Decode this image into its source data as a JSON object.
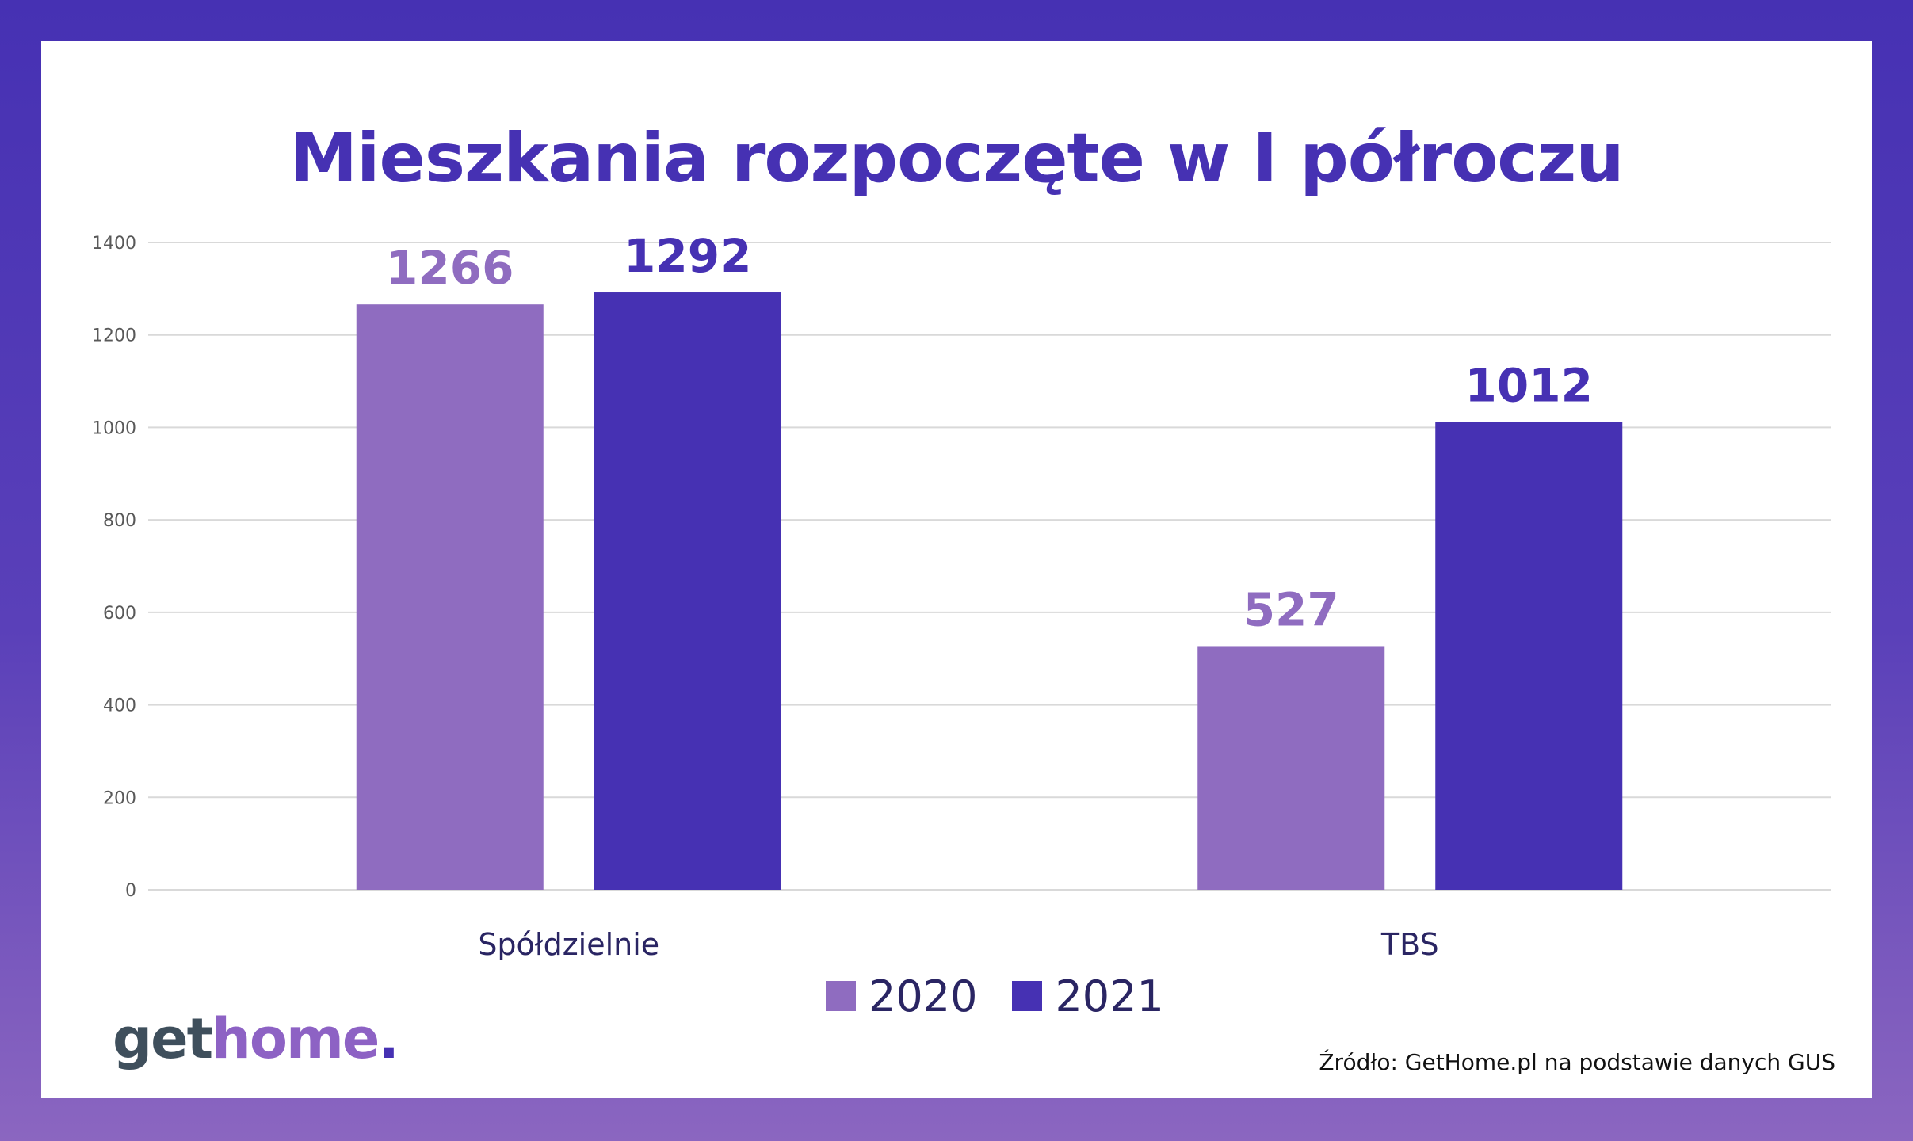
{
  "chart_data": {
    "type": "bar",
    "title": "Mieszkania rozpoczęte w I półroczu",
    "categories": [
      "Spółdzielnie",
      "TBS"
    ],
    "series": [
      {
        "name": "2020",
        "values": [
          1266,
          527
        ],
        "color": "#8f6cc0"
      },
      {
        "name": "2021",
        "values": [
          1292,
          1012
        ],
        "color": "#4631b3"
      }
    ],
    "ylim": [
      0,
      1400
    ],
    "yticks": [
      0,
      200,
      400,
      600,
      800,
      1000,
      1200,
      1400
    ],
    "xlabel": "",
    "ylabel": "",
    "grid": true,
    "legend_position": "bottom-center"
  },
  "brand": {
    "part1": "get",
    "part2": "home",
    "part3": "."
  },
  "source": "Źródło: GetHome.pl na podstawie danych GUS",
  "colors": {
    "title": "#4631b3",
    "grid": "#d9d9d9",
    "axis_text": "#595959",
    "category_text": "#2a2563"
  }
}
